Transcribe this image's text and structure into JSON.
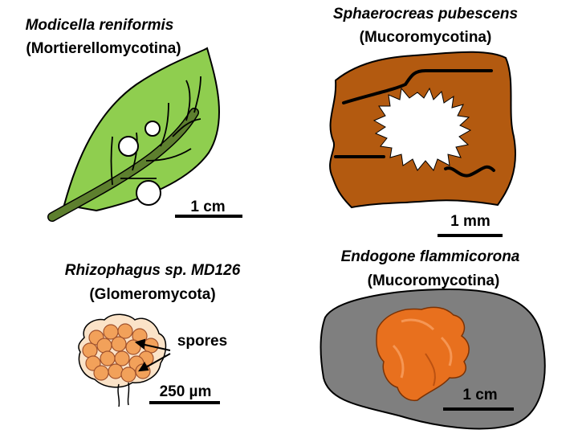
{
  "panels": [
    {
      "species": "Modicella reniformis",
      "group": "(Mortierellomycotina)",
      "scale": "1 cm"
    },
    {
      "species": "Sphaerocreas pubescens",
      "group": "(Mucoromycotina)",
      "scale": "1 mm"
    },
    {
      "species": "Rhizophagus sp. MD126",
      "group": "(Glomeromycota)",
      "scale": "250 µm",
      "annotation": "spores"
    },
    {
      "species": "Endogone flammicorona",
      "group": "(Mucoromycotina)",
      "scale": "1 cm"
    }
  ],
  "colors": {
    "leaf": "#8fce4f",
    "leaf_vein": "#5d7f2e",
    "substrate_brown": "#b35a10",
    "spore_orange": "#f2a15a",
    "background_gray": "#7f7f7f",
    "fruitbody_orange": "#e8701e"
  }
}
